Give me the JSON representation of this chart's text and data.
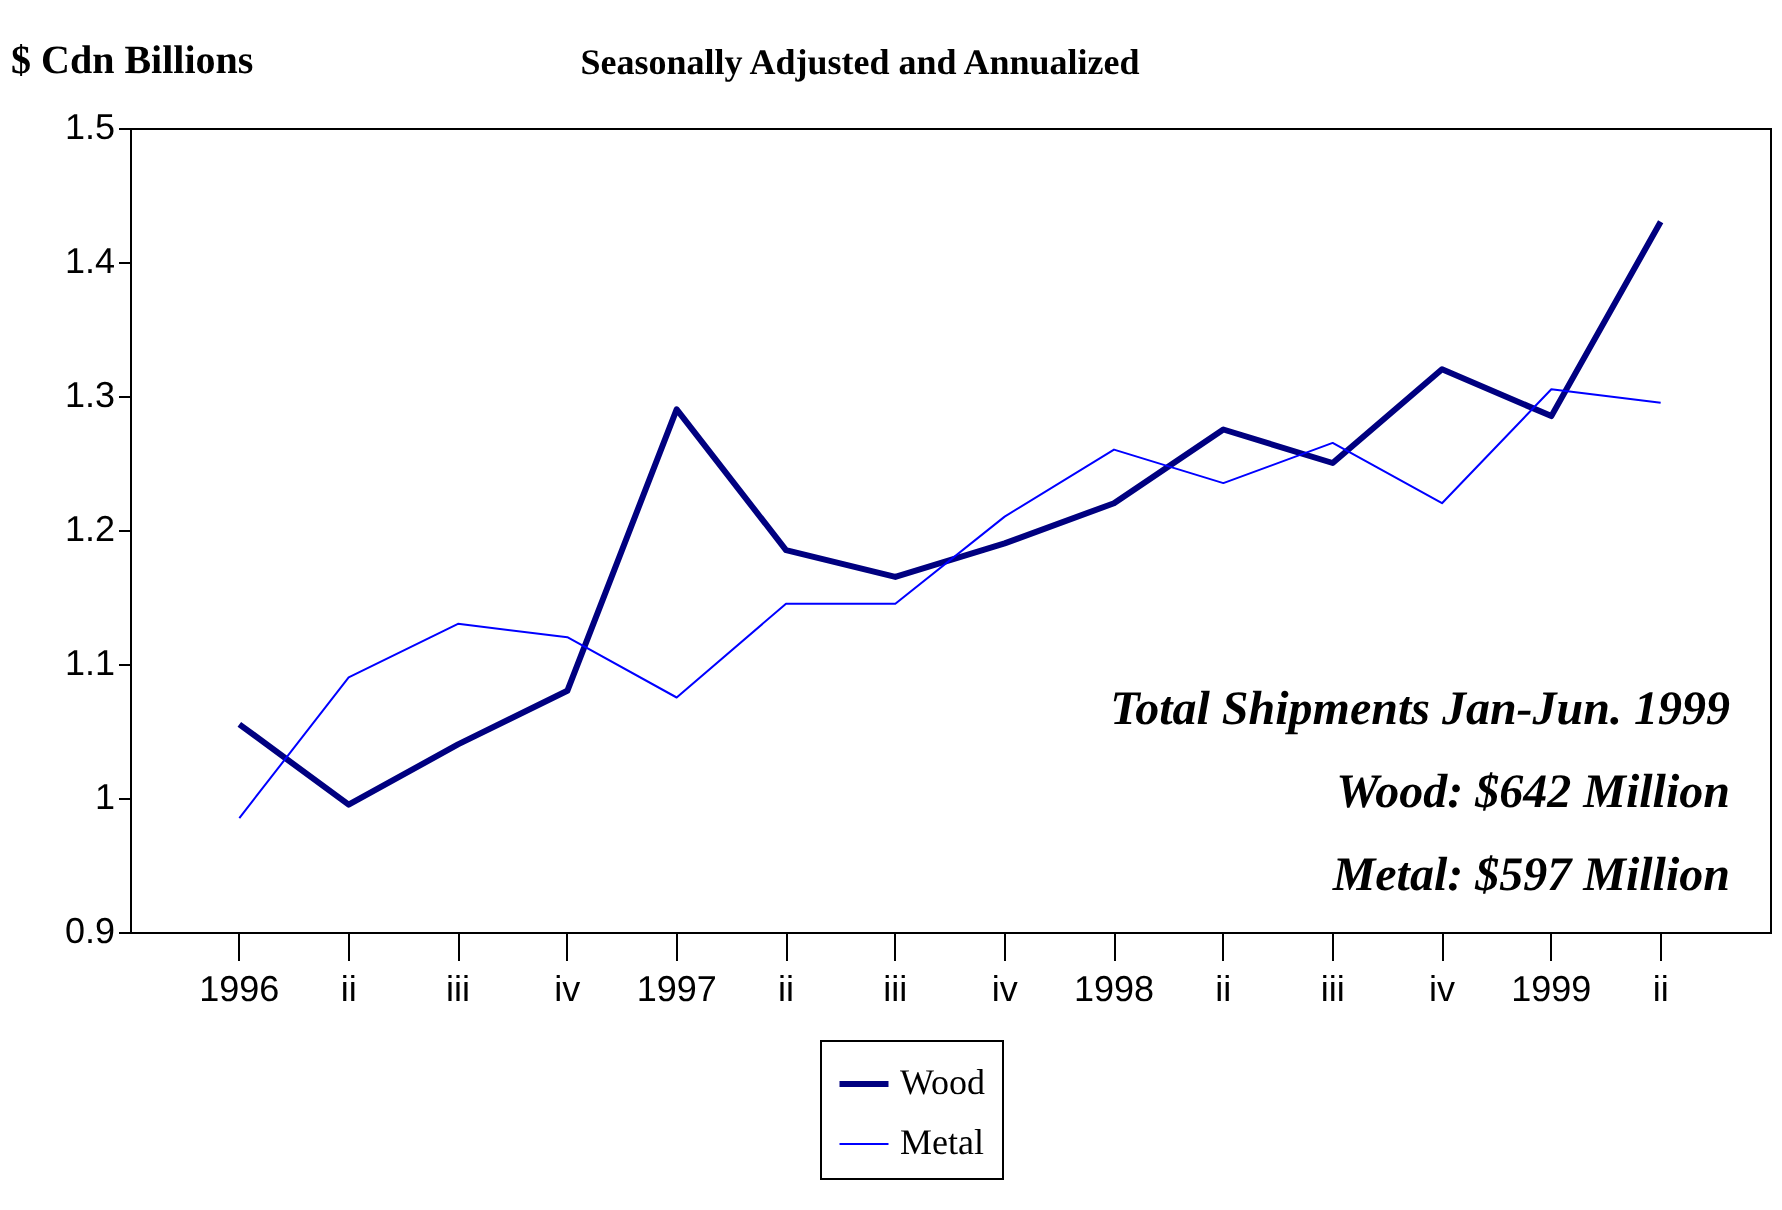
{
  "chart_data": {
    "type": "line",
    "title": "Seasonally Adjusted and Annualized",
    "ylabel": "$ Cdn Billions",
    "categories": [
      "1996",
      "ii",
      "iii",
      "iv",
      "1997",
      "ii",
      "iii",
      "iv",
      "1998",
      "ii",
      "iii",
      "iv",
      "1999",
      "ii"
    ],
    "series": [
      {
        "name": "Wood",
        "color": "#000080",
        "values": [
          1.055,
          0.995,
          1.04,
          1.08,
          1.29,
          1.185,
          1.165,
          1.19,
          1.22,
          1.275,
          1.25,
          1.32,
          1.285,
          1.43
        ]
      },
      {
        "name": "Metal",
        "color": "#0000ff",
        "values": [
          0.985,
          1.09,
          1.13,
          1.12,
          1.075,
          1.145,
          1.145,
          1.21,
          1.26,
          1.235,
          1.265,
          1.22,
          1.305,
          1.295
        ]
      }
    ],
    "ylim": [
      0.9,
      1.5
    ],
    "yticks": [
      0.9,
      {
        "value": 1,
        "label": "1"
      },
      1.1,
      1.2,
      1.3,
      1.4,
      1.5
    ],
    "grid": false,
    "legend": "bottom",
    "marker": "none",
    "line_style": "solid",
    "annotations": [
      "Total Shipments Jan-Jun. 1999",
      "Wood: $642 Million",
      "Metal: $597 Million"
    ]
  }
}
